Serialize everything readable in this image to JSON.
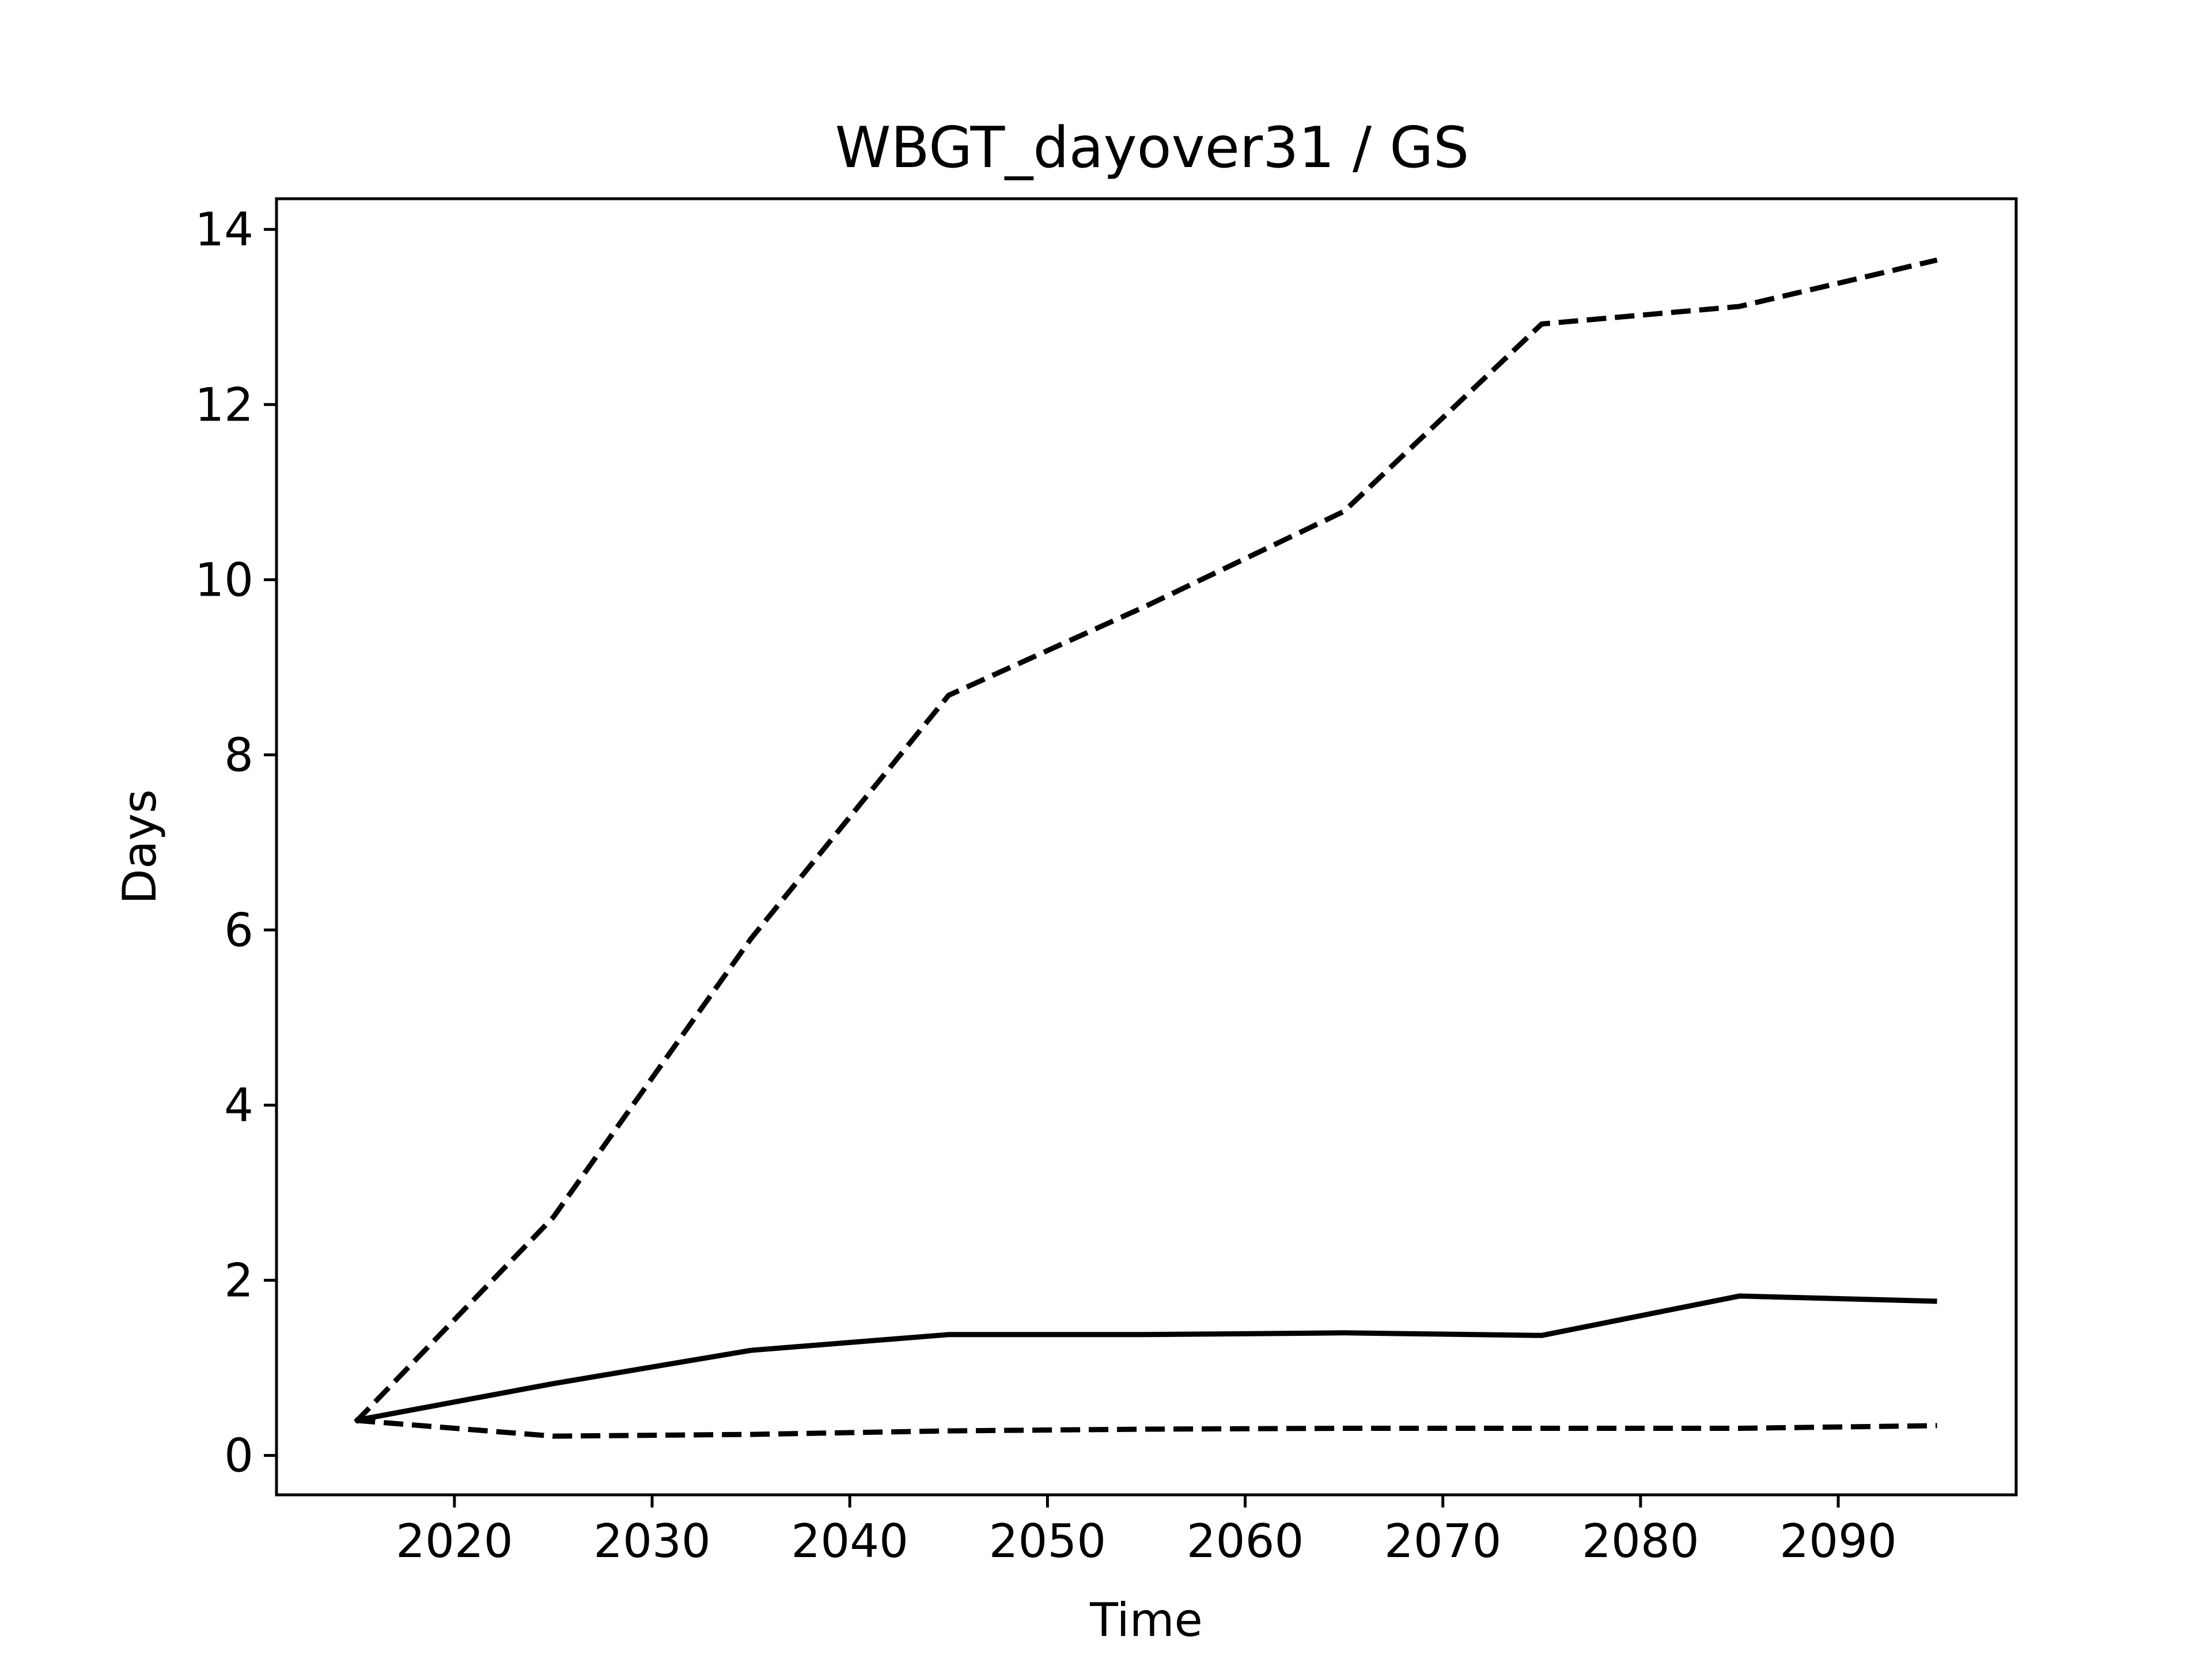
{
  "chart_data": {
    "type": "line",
    "title": "WBGT_dayover31 / GS",
    "xlabel": "Time",
    "ylabel": "Days",
    "xlim": [
      2011,
      2099
    ],
    "ylim": [
      -0.45,
      14.35
    ],
    "xticks": [
      2020,
      2030,
      2040,
      2050,
      2060,
      2070,
      2080,
      2090
    ],
    "yticks": [
      0,
      2,
      4,
      6,
      8,
      10,
      12,
      14
    ],
    "grid": false,
    "legend": "none",
    "x": [
      2015,
      2025,
      2035,
      2045,
      2055,
      2065,
      2075,
      2085,
      2095
    ],
    "series": [
      {
        "style": "dashed",
        "color": "#000000",
        "values": [
          0.38,
          2.72,
          5.9,
          8.68,
          9.7,
          10.78,
          12.92,
          13.12,
          13.65
        ]
      },
      {
        "style": "solid",
        "color": "#000000",
        "values": [
          0.4,
          0.82,
          1.2,
          1.38,
          1.38,
          1.4,
          1.37,
          1.82,
          1.76
        ]
      },
      {
        "style": "dashed",
        "color": "#000000",
        "values": [
          0.4,
          0.22,
          0.24,
          0.28,
          0.3,
          0.31,
          0.31,
          0.31,
          0.34
        ]
      }
    ]
  }
}
